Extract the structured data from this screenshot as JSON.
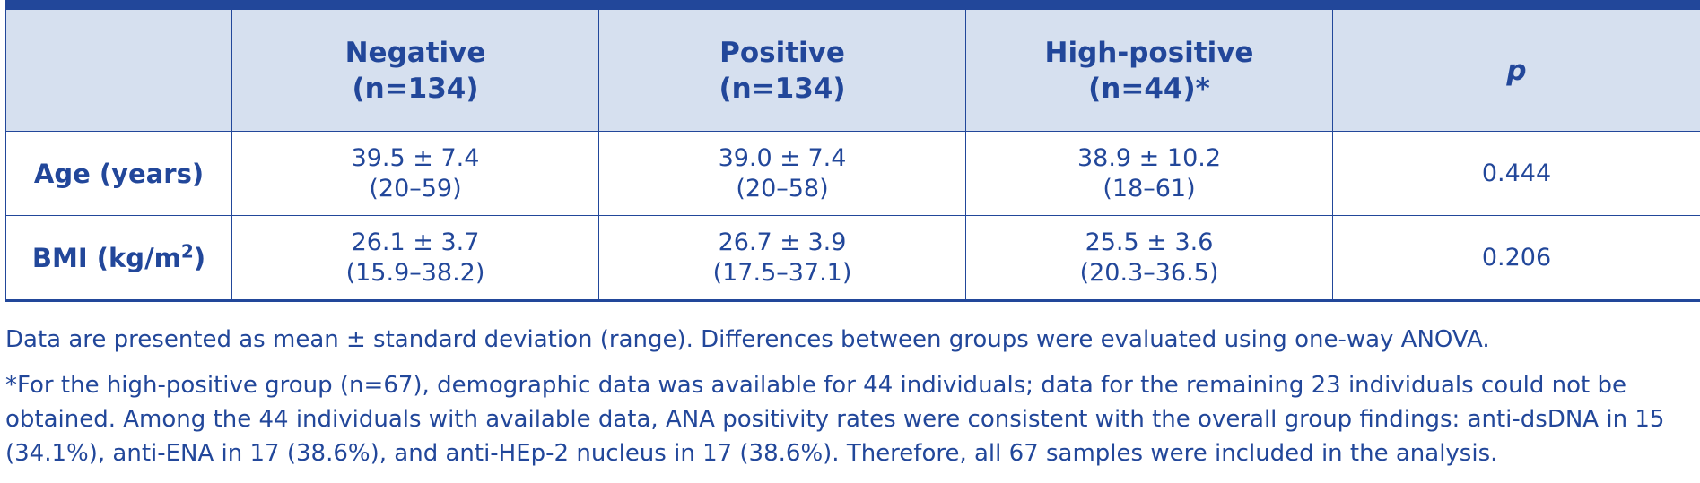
{
  "table": {
    "columns": [
      {
        "line1": "",
        "line2": ""
      },
      {
        "line1": "Negative",
        "line2": "(n=134)"
      },
      {
        "line1": "Positive",
        "line2": "(n=134)"
      },
      {
        "line1": "High-positive",
        "line2": "(n=44)*"
      },
      {
        "line1": "p",
        "line2": ""
      }
    ],
    "rows": [
      {
        "label": "Age (years)",
        "label_sup": "",
        "label_suffix": "",
        "cells": [
          {
            "mean": "39.5 ± 7.4",
            "range": "(20–59)"
          },
          {
            "mean": "39.0 ± 7.4",
            "range": "(20–58)"
          },
          {
            "mean": "38.9 ± 10.2",
            "range": "(18–61)"
          }
        ],
        "p": "0.444"
      },
      {
        "label": "BMI (kg/m",
        "label_sup": "2",
        "label_suffix": ")",
        "cells": [
          {
            "mean": "26.1 ± 3.7",
            "range": "(15.9–38.2)"
          },
          {
            "mean": "26.7 ± 3.9",
            "range": "(17.5–37.1)"
          },
          {
            "mean": "25.5 ± 3.6",
            "range": "(20.3–36.5)"
          }
        ],
        "p": "0.206"
      }
    ]
  },
  "notes": {
    "note1": "Data are presented as mean ± standard deviation (range). Differences between groups were evaluated using one-way ANOVA.",
    "note2": "*For the high-positive group (n=67), demographic data was available for 44 individuals; data for the remaining 23 individuals could not be obtained. Among the 44 individuals with available data, ANA positivity rates were consistent with the overall group findings: anti-dsDNA in 15 (34.1%), anti-ENA in 17 (38.6%), and anti-HEp-2 nucleus in 17 (38.6%). Therefore, all 67 samples were included in the analysis."
  },
  "colors": {
    "text": "#22479a",
    "header_bg": "#d6e0ef",
    "rule": "#22479a"
  }
}
